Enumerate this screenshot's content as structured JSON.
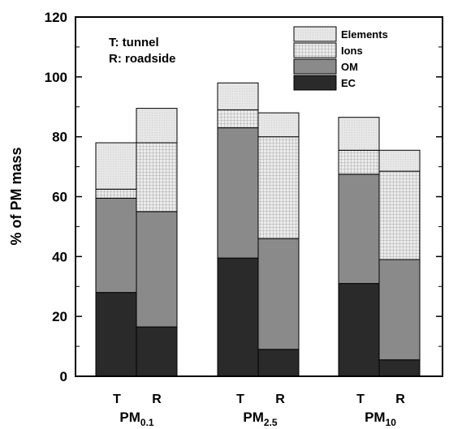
{
  "chart_data": {
    "type": "bar",
    "stacked": true,
    "ylabel": "% of PM mass",
    "ylim": [
      0,
      120
    ],
    "yticks": [
      0,
      20,
      40,
      60,
      80,
      100,
      120
    ],
    "grid": false,
    "legend_position": "top-right",
    "annotations": [
      "T: tunnel",
      "R: roadside"
    ],
    "groups": [
      {
        "name": "PM",
        "sub": "0.1",
        "categories": [
          "T",
          "R"
        ]
      },
      {
        "name": "PM",
        "sub": "2.5",
        "categories": [
          "T",
          "R"
        ]
      },
      {
        "name": "PM",
        "sub": "10",
        "categories": [
          "T",
          "R"
        ]
      }
    ],
    "categories": [
      "PM0.1 T",
      "PM0.1 R",
      "PM2.5 T",
      "PM2.5 R",
      "PM10 T",
      "PM10 R"
    ],
    "series": [
      {
        "name": "EC",
        "values": [
          28,
          16.5,
          39.5,
          9,
          31,
          5.5
        ],
        "color": "#2a2a2a"
      },
      {
        "name": "OM",
        "values": [
          31.5,
          38.5,
          43.5,
          37,
          36.5,
          33.5
        ],
        "color": "#8a8a8a"
      },
      {
        "name": "Ions",
        "values": [
          3,
          23,
          6,
          34,
          8,
          29.5
        ],
        "color": "#e0e0e0",
        "pattern": "grid"
      },
      {
        "name": "Elements",
        "values": [
          15.5,
          11.5,
          9,
          8,
          11,
          7
        ],
        "color": "#e4e4e4"
      }
    ],
    "legend_order": [
      "Elements",
      "Ions",
      "OM",
      "EC"
    ]
  }
}
